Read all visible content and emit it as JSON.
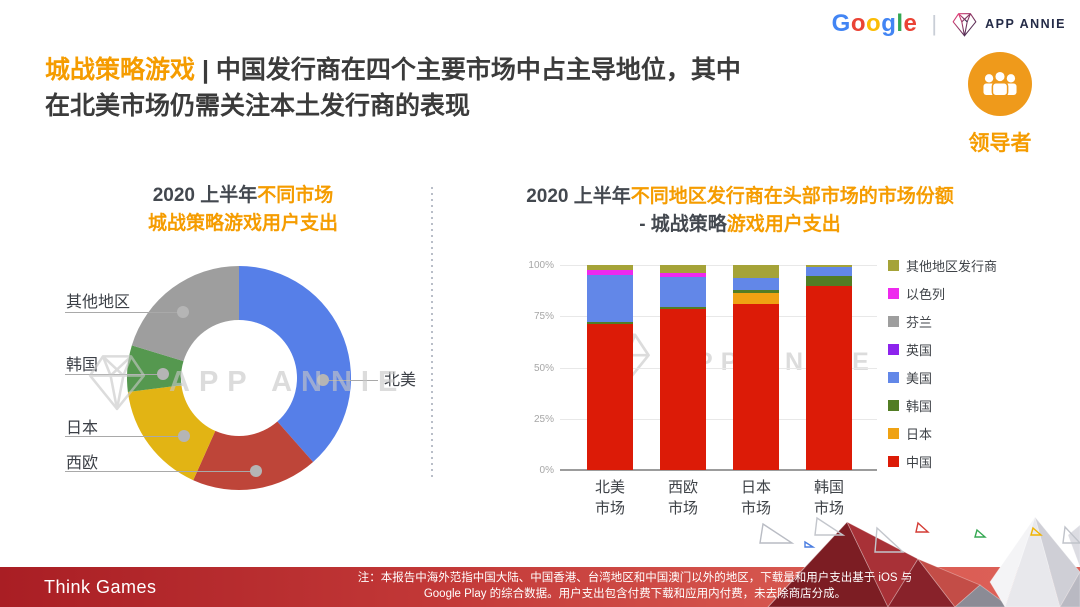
{
  "header": {
    "google_logo_letters": [
      {
        "char": "G",
        "color": "#4285F4"
      },
      {
        "char": "o",
        "color": "#EA4335"
      },
      {
        "char": "o",
        "color": "#FBBC05"
      },
      {
        "char": "g",
        "color": "#4285F4"
      },
      {
        "char": "l",
        "color": "#34A853"
      },
      {
        "char": "e",
        "color": "#EA4335"
      }
    ],
    "divider": "|",
    "app_annie_label": "APP ANNIE"
  },
  "title": {
    "highlight": "城战策略游戏",
    "separator": " | ",
    "rest_line1": "中国发行商在四个主要市场中占主导地位，其中",
    "line2": "在北美市场仍需关注本土发行商的表现",
    "highlight_color": "#F59C00",
    "text_color": "#3B3B3B"
  },
  "badge": {
    "label": "领导者",
    "circle_color": "#EF9A1B",
    "icon": "people-group-icon"
  },
  "watermark": {
    "text": "APP ANNIE"
  },
  "chart_data": [
    {
      "type": "pie",
      "donut": true,
      "title": "2020 上半年不同市场城战策略游戏用户支出",
      "title_parts": {
        "line1_dark": "2020 上半年",
        "line1_orange": "不同市场",
        "line2_orange": "城战策略游戏用户支出"
      },
      "labels": [
        "北美",
        "西欧",
        "日本",
        "韩国",
        "其他地区"
      ],
      "values": [
        38.5,
        18.2,
        16.3,
        6.7,
        20.3
      ],
      "colors": [
        "#567FE8",
        "#BE4539",
        "#E2B414",
        "#55984F",
        "#9E9E9E"
      ],
      "legend_position": "callout-labels"
    },
    {
      "type": "bar",
      "stacked": true,
      "title": "2020 上半年不同地区发行商在头部市场的市场份额 - 城战策略游戏用户支出",
      "title_parts": {
        "line1_dark": "2020 上半年",
        "line1_orange": "不同地区发行商在头部市场的市场份额",
        "line2_dark": "- 城战策略",
        "line2_orange": "游戏用户支出"
      },
      "categories": [
        {
          "line1": "北美",
          "line2": "市场"
        },
        {
          "line1": "西欧",
          "line2": "市场"
        },
        {
          "line1": "日本",
          "line2": "市场"
        },
        {
          "line1": "韩国",
          "line2": "市场"
        }
      ],
      "series_bottom_to_top": [
        {
          "name": "中国",
          "color": "#DC1B07",
          "values": [
            71,
            78.5,
            81,
            90
          ]
        },
        {
          "name": "日本",
          "color": "#EFA213",
          "values": [
            0,
            0,
            5.5,
            0
          ]
        },
        {
          "name": "韩国",
          "color": "#527D24",
          "values": [
            1,
            1,
            1.5,
            4.5
          ]
        },
        {
          "name": "美国",
          "color": "#6287E8",
          "values": [
            23,
            14.5,
            5.5,
            4.5
          ]
        },
        {
          "name": "英国",
          "color": "#8D23ED",
          "values": [
            0,
            0,
            0,
            0
          ]
        },
        {
          "name": "芬兰",
          "color": "#9E9E9E",
          "values": [
            0,
            0,
            0,
            0
          ]
        },
        {
          "name": "以色列",
          "color": "#EE29EE",
          "values": [
            2.5,
            2,
            0,
            0
          ]
        },
        {
          "name": "其他地区发行商",
          "color": "#A5A338",
          "values": [
            2.5,
            4,
            6.5,
            1
          ]
        }
      ],
      "yticks": [
        "0%",
        "25%",
        "50%",
        "75%",
        "100%"
      ],
      "ylim": [
        0,
        100
      ],
      "grid": true,
      "legend_position": "right"
    }
  ],
  "footer": {
    "brand": "Think Games",
    "note_line1": "注：本报告中海外范指中国大陆、中国香港、台湾地区和中国澳门以外的地区，下载量和用户支出基于 iOS 与",
    "note_line2": "Google Play 的综合数据。用户支出包含付费下载和应用内付费，未去除商店分成。"
  }
}
